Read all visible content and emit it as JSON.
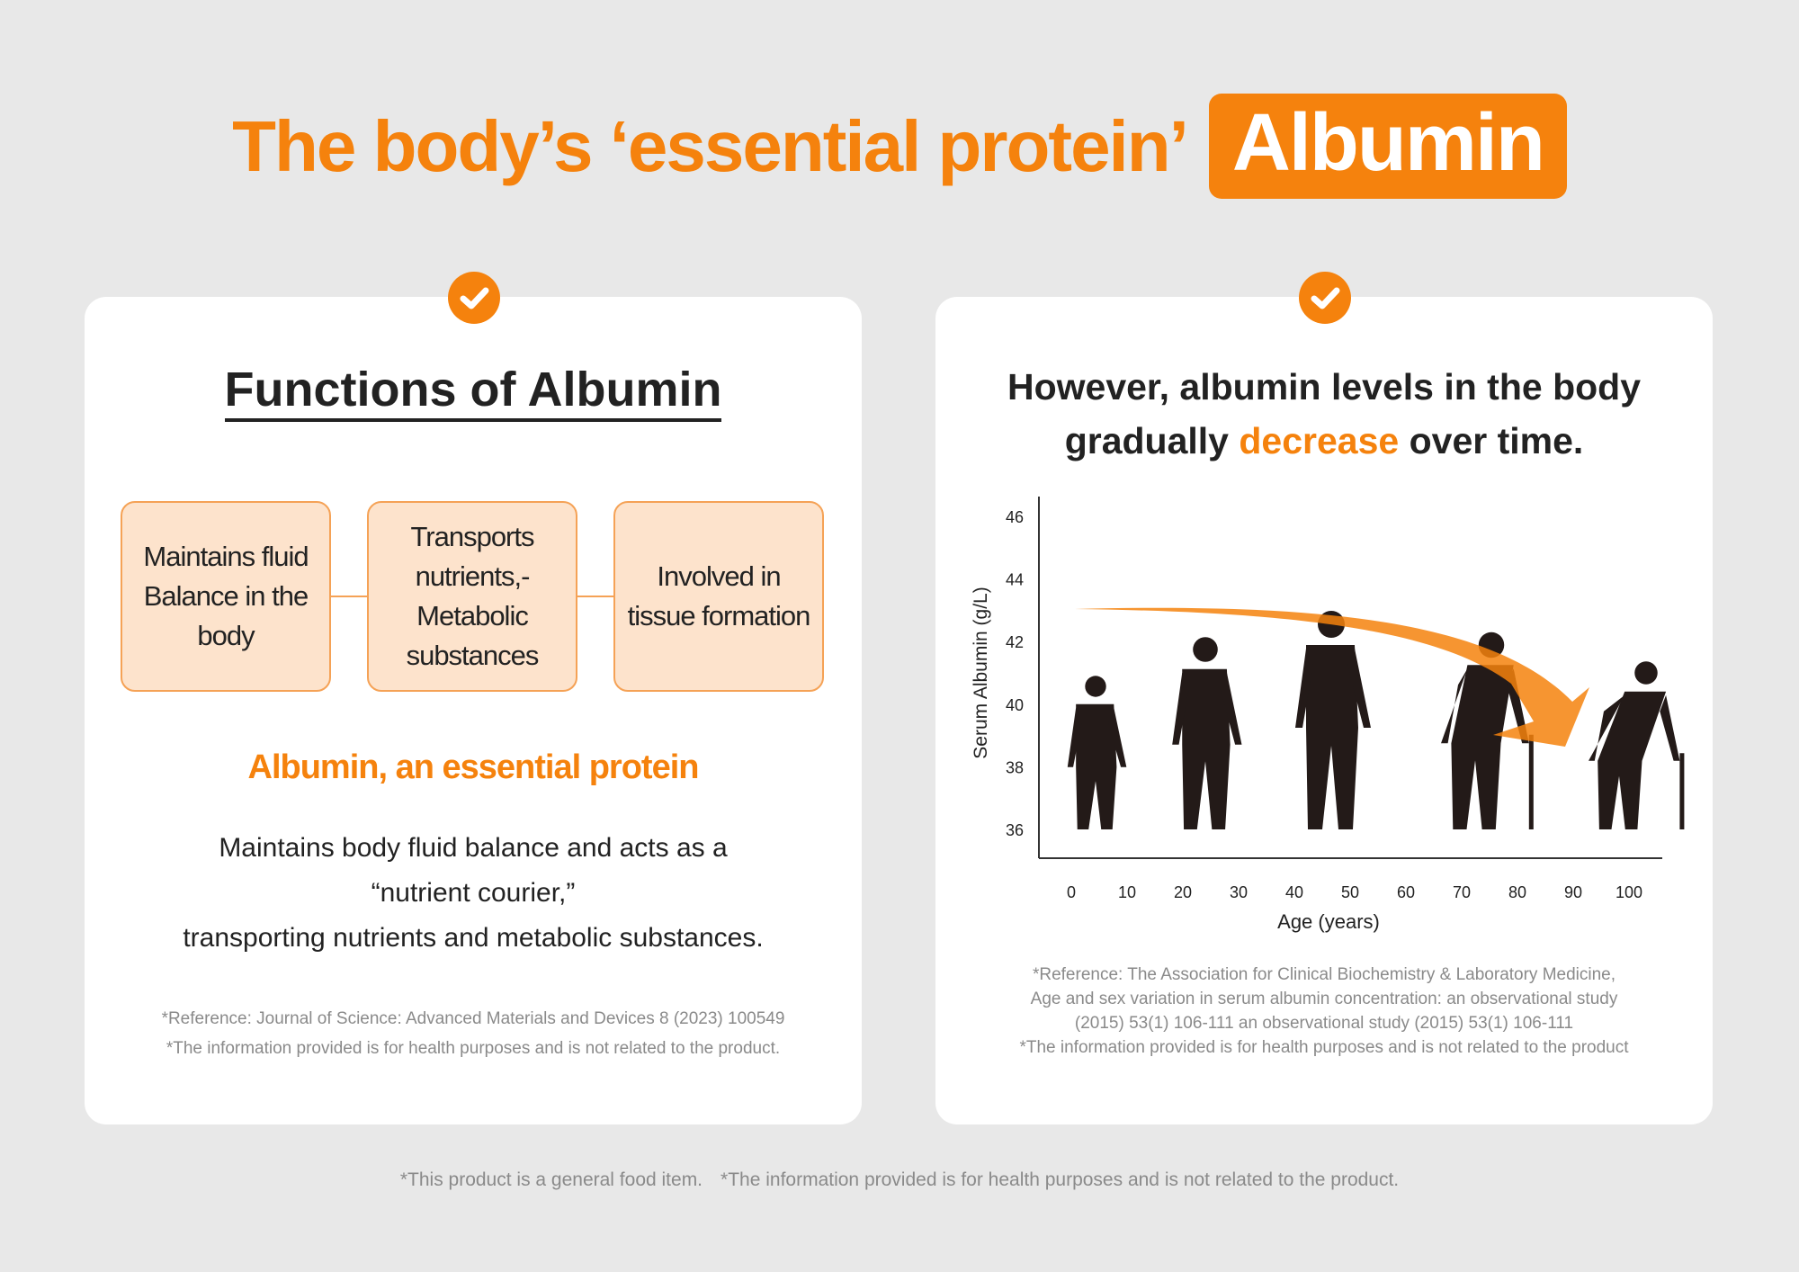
{
  "title": {
    "prefix": "The body’s ‘essential protein’",
    "badge": "Albumin"
  },
  "left_card": {
    "heading": "Functions of Albumin",
    "functions": [
      "Maintains fluid Balance in the body",
      "Transports nutrients,- Metabolic substances",
      "Involved in tissue formation"
    ],
    "subheading": "Albumin, an essential protein",
    "description": [
      "Maintains body fluid balance and acts as a",
      "“nutrient courier,”",
      "transporting nutrients and metabolic substances."
    ],
    "references": [
      "*Reference: Journal of Science: Advanced Materials and Devices 8 (2023) 100549",
      "*The information provided is for health purposes and is not related to the product."
    ]
  },
  "right_card": {
    "heading_line1": "However, albumin levels in the body",
    "heading_pre": "gradually ",
    "heading_highlight": "decrease",
    "heading_post": " over time.",
    "references": [
      "*Reference: The Association for Clinical Biochemistry & Laboratory Medicine,",
      "Age and sex variation in serum albumin concentration: an observational study",
      "(2015) 53(1) 106-111 an observational study (2015) 53(1) 106-111",
      "*The information provided is for health purposes and is not related to the product"
    ]
  },
  "chart_data": {
    "type": "illustration",
    "xlabel": "Age (years)",
    "ylabel": "Serum Albumin (g/L)",
    "x_ticks": [
      "0",
      "10",
      "20",
      "30",
      "40",
      "50",
      "60",
      "70",
      "80",
      "90",
      "100"
    ],
    "y_ticks": [
      "36",
      "38",
      "40",
      "42",
      "44",
      "46"
    ],
    "trend": "decrease"
  },
  "footer": [
    "*This product is a general food item.",
    "*The information provided is for health purposes and is not related to the product."
  ],
  "colors": {
    "accent": "#f5820d",
    "box_fill": "#fde3cc",
    "background": "#e8e8e8"
  }
}
